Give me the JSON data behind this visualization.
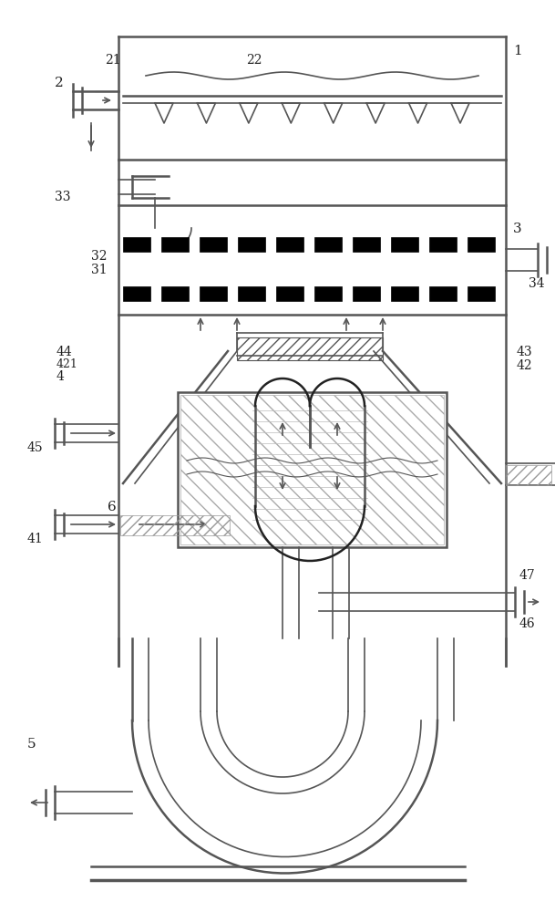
{
  "bg_color": "#ffffff",
  "line_color": "#555555",
  "dark_color": "#222222",
  "hatch_color": "#888888",
  "fig_width": 6.09,
  "fig_height": 10.0,
  "dpi": 100
}
